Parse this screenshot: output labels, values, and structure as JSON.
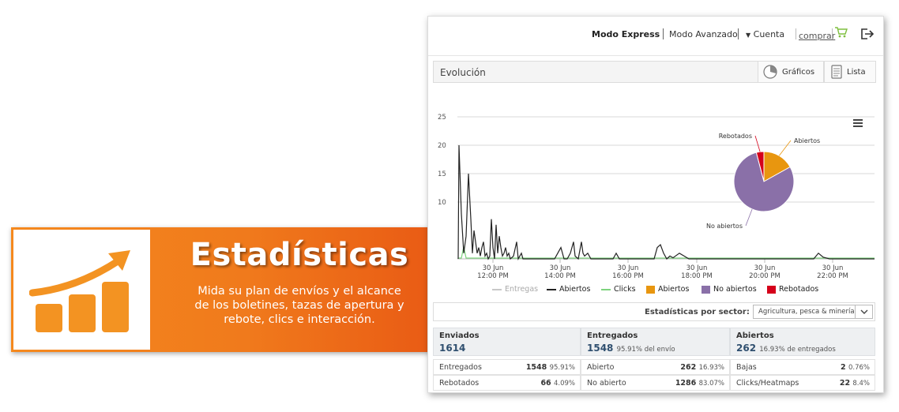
{
  "promo": {
    "title": "Estadísticas",
    "description": "Mida su plan de envíos y el alcance de los boletines, tazas de apertura y rebote, clics e interacción.",
    "icon": "growth-bar-chart-icon",
    "accent": "#f39322"
  },
  "nav": {
    "express": "Modo Express",
    "avanzado": "Modo Avanzado",
    "cuenta": "Cuenta",
    "comprar": "comprar",
    "cart_icon": "shopping-cart-icon",
    "logout_icon": "logout-icon"
  },
  "evolution": {
    "title": "Evolución",
    "graficos": "Gráficos",
    "lista": "Lista"
  },
  "chart_data": [
    {
      "type": "line",
      "y_ticks": [
        25,
        20,
        15,
        10
      ],
      "ylim": [
        0,
        25
      ],
      "x_tick_labels": [
        [
          "30 Jun",
          "12:00 PM"
        ],
        [
          "30 Jun",
          "14:00 PM"
        ],
        [
          "30 Jun",
          "16:00 PM"
        ],
        [
          "30 Jun",
          "18:00 PM"
        ],
        [
          "30 Jun",
          "20:00 PM"
        ],
        [
          "30 Jun",
          "22:00 PM"
        ]
      ],
      "series": [
        {
          "name": "Entregas",
          "color": "#c8c8c8",
          "visible": false
        },
        {
          "name": "Abiertos",
          "color": "#222222"
        },
        {
          "name": "Clicks",
          "color": "#7ed37e"
        }
      ],
      "grid": true
    },
    {
      "type": "pie",
      "slices": [
        {
          "label": "Abiertos",
          "value": 16.93,
          "color": "#e8960f"
        },
        {
          "label": "No abiertos",
          "value": 79.0,
          "color": "#8a70a8"
        },
        {
          "label": "Rebotados",
          "value": 4.09,
          "color": "#d5001a"
        }
      ]
    }
  ],
  "legend": {
    "entregas": "Entregas",
    "abiertos_line": "Abiertos",
    "clicks": "Clicks",
    "abiertos_pie": "Abiertos",
    "no_abiertos": "No abiertos",
    "rebotados": "Rebotados"
  },
  "sector": {
    "label": "Estadísticas por sector:",
    "value": "Agricultura, pesca & minería"
  },
  "summary": {
    "enviados": {
      "title": "Enviados",
      "value": "1614",
      "sub": ""
    },
    "entregados": {
      "title": "Entregados",
      "value": "1548",
      "sub": "95.91% del envío"
    },
    "abiertos": {
      "title": "Abiertos",
      "value": "262",
      "sub": "16.93% de entregados"
    }
  },
  "details": [
    {
      "label": "Entregados",
      "num": "1548",
      "pct": "95.91%"
    },
    {
      "label": "Abierto",
      "num": "262",
      "pct": "16.93%"
    },
    {
      "label": "Bajas",
      "num": "2",
      "pct": "0.76%"
    },
    {
      "label": "Rebotados",
      "num": "66",
      "pct": "4.09%"
    },
    {
      "label": "No abierto",
      "num": "1286",
      "pct": "83.07%"
    },
    {
      "label": "Clicks/Heatmaps",
      "num": "22",
      "pct": "8.4%"
    }
  ]
}
